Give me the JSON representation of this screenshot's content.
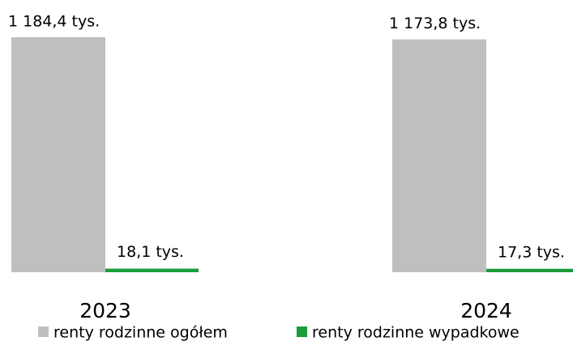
{
  "chart_data": {
    "type": "bar",
    "categories": [
      "2023",
      "2024"
    ],
    "series": [
      {
        "name": "renty rodzinne ogółem",
        "color": "#bfbfbf",
        "values": [
          1184.4,
          1173.8
        ],
        "value_labels": [
          "1 184,4 tys.",
          "1 173,8 tys."
        ]
      },
      {
        "name": "renty rodzinne wypadkowe",
        "color": "#1a9b3c",
        "values": [
          18.1,
          17.3
        ],
        "value_labels": [
          "18,1 tys.",
          "17,3 tys."
        ]
      }
    ],
    "legend": "bottom"
  }
}
